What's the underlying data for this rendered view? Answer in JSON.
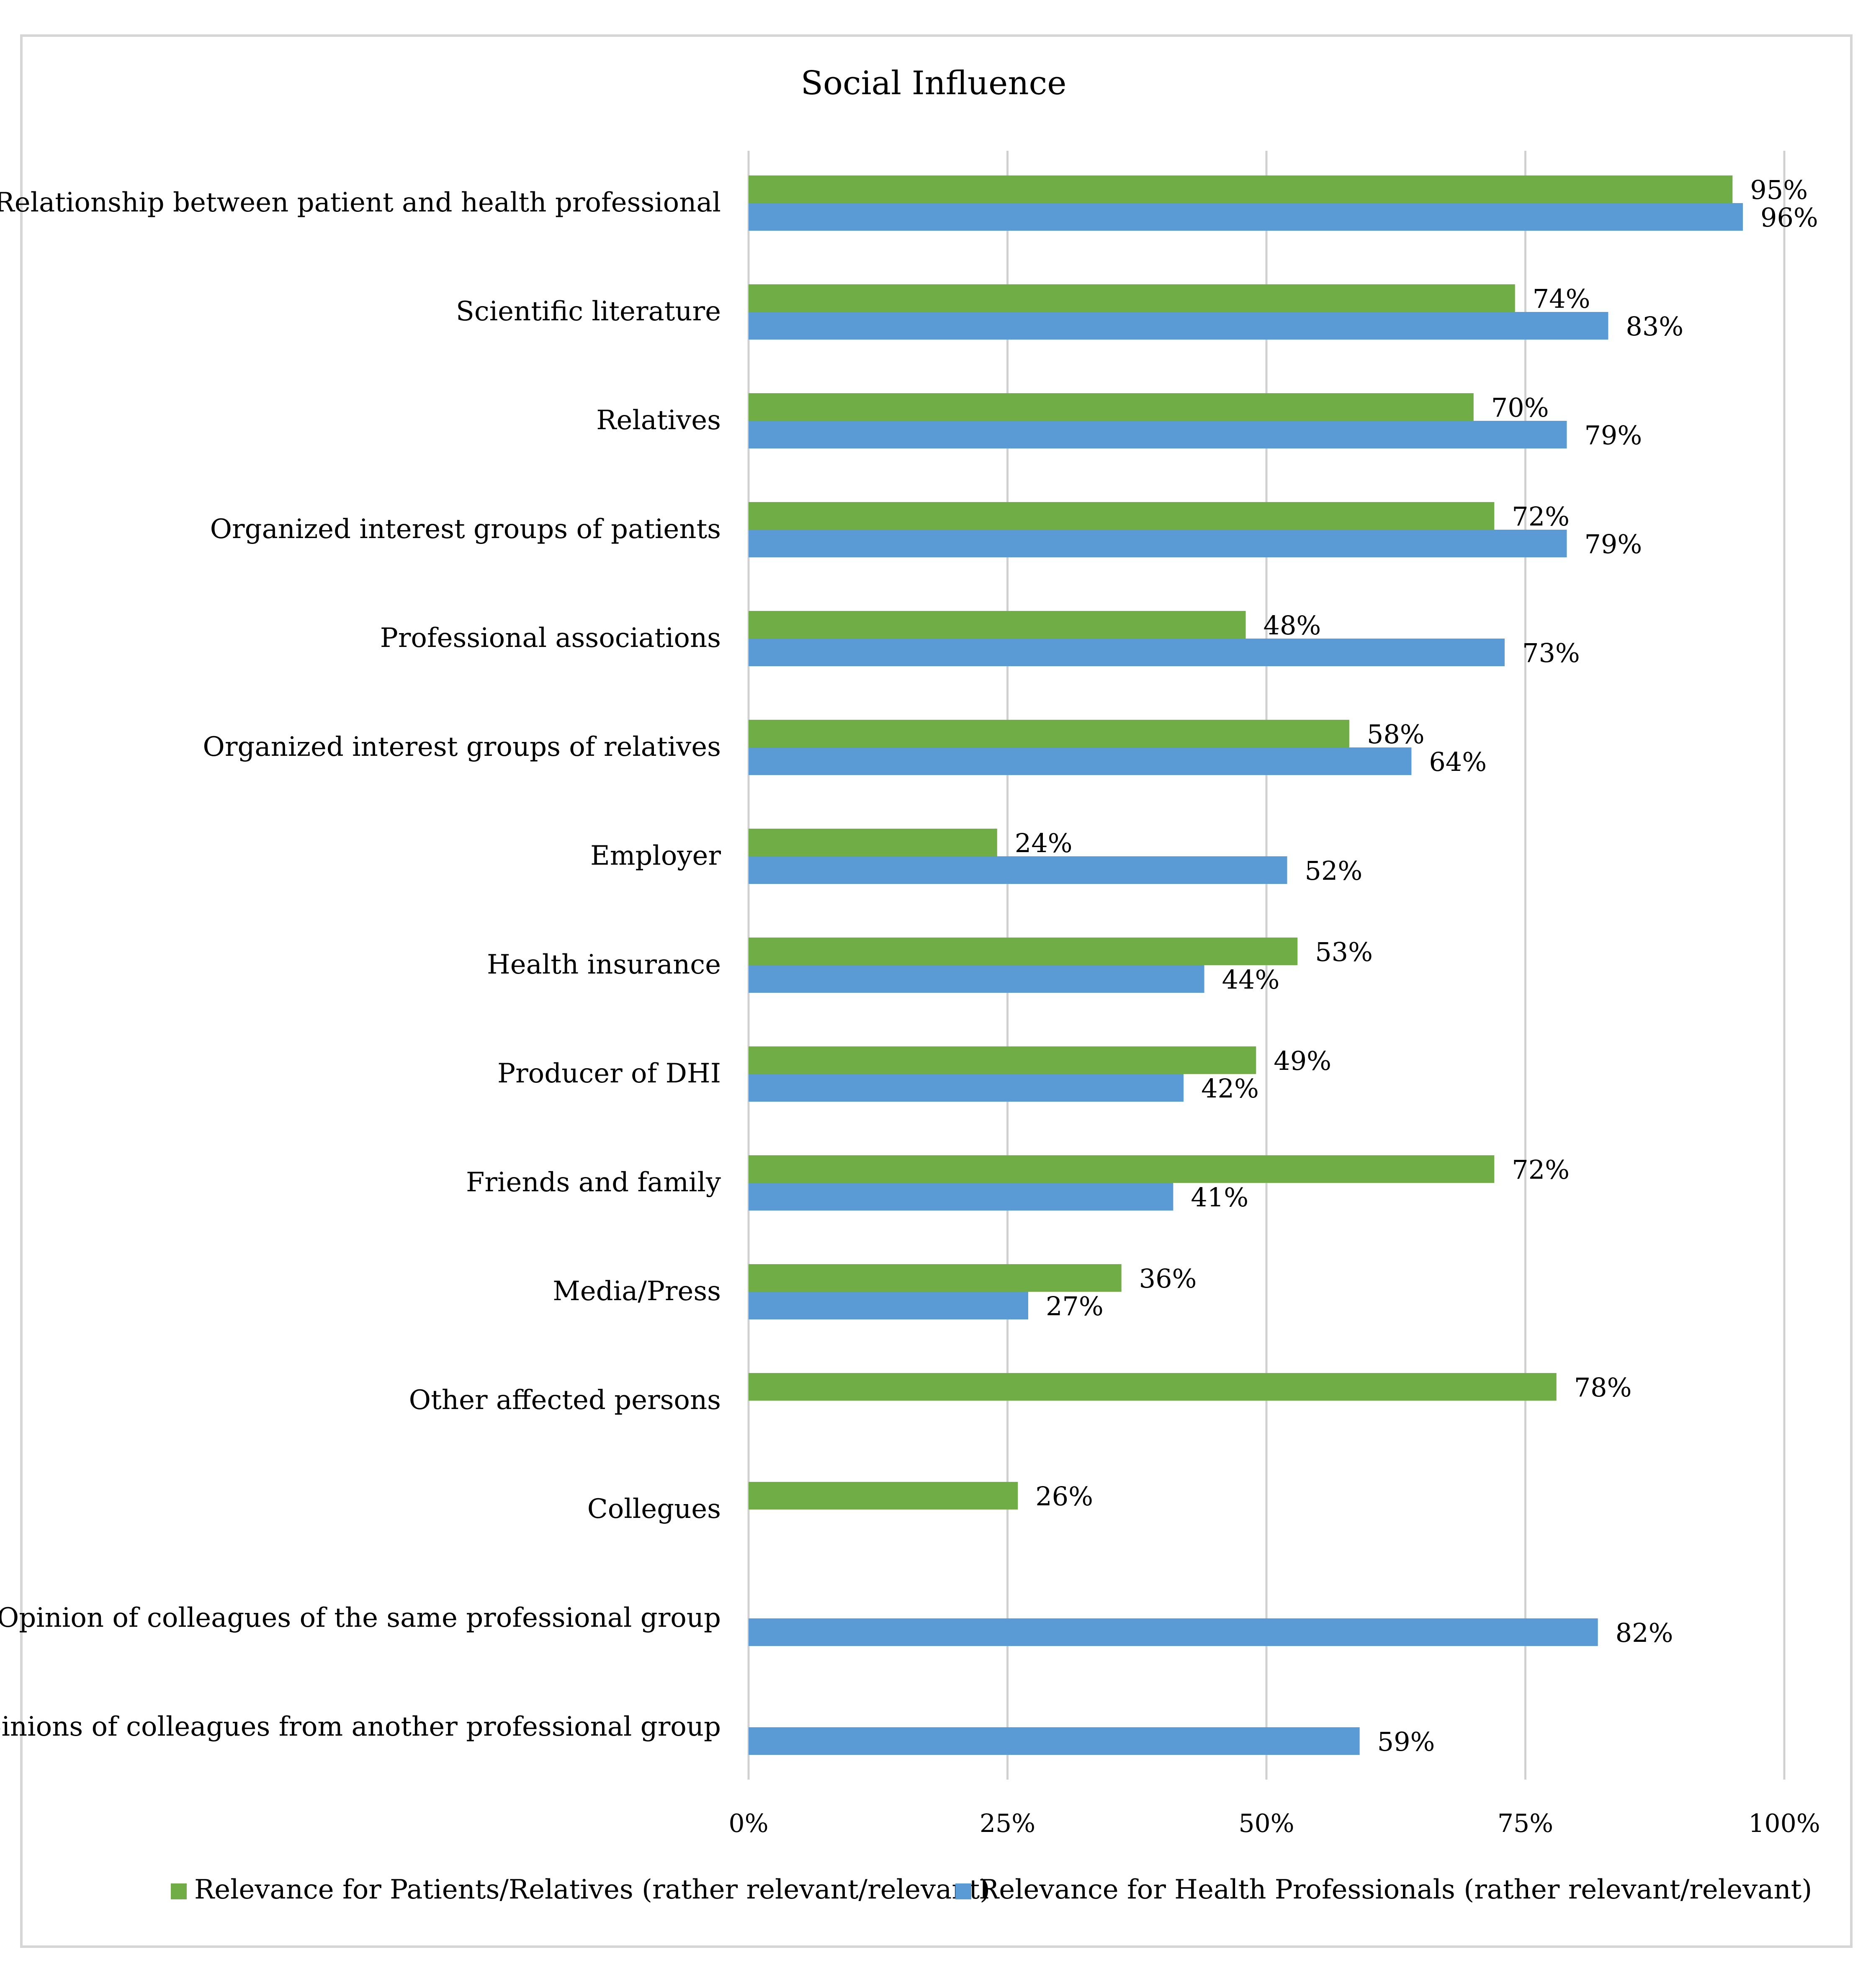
{
  "chart_data": {
    "type": "bar",
    "orientation": "horizontal",
    "title": "Social Influence",
    "xlim": [
      0,
      100
    ],
    "x_ticks": [
      "0%",
      "25%",
      "50%",
      "75%",
      "100%"
    ],
    "grid": true,
    "legend_position": "bottom",
    "categories": [
      "Relationship between patient and health professional",
      "Scientific literature",
      "Relatives",
      "Organized interest groups of patients",
      "Professional associations",
      "Organized interest groups of relatives",
      "Employer",
      "Health insurance",
      "Producer of DHI",
      "Friends and family",
      "Media/Press",
      "Other affected persons",
      "Collegues",
      "Opinion of colleagues of the same professional group",
      "Opinions of colleagues from another professional group"
    ],
    "series": [
      {
        "name": "Relevance for Patients/Relatives (rather relevant/relevant)",
        "color": "#70ad47",
        "values": [
          95,
          74,
          70,
          72,
          48,
          58,
          24,
          53,
          49,
          72,
          36,
          78,
          26,
          null,
          null
        ],
        "labels": [
          "95%",
          "74%",
          "70%",
          "72%",
          "48%",
          "58%",
          "24%",
          "53%",
          "49%",
          "72%",
          "36%",
          "78%",
          "26%",
          null,
          null
        ]
      },
      {
        "name": "Relevance for Health Professionals (rather relevant/relevant)",
        "color": "#5b9bd5",
        "values": [
          96,
          83,
          79,
          79,
          73,
          64,
          52,
          44,
          42,
          41,
          27,
          null,
          null,
          82,
          59
        ],
        "labels": [
          "96%",
          "83%",
          "79%",
          "79%",
          "73%",
          "64%",
          "52%",
          "44%",
          "42%",
          "41%",
          "27%",
          null,
          null,
          "82%",
          "59%"
        ]
      }
    ]
  }
}
